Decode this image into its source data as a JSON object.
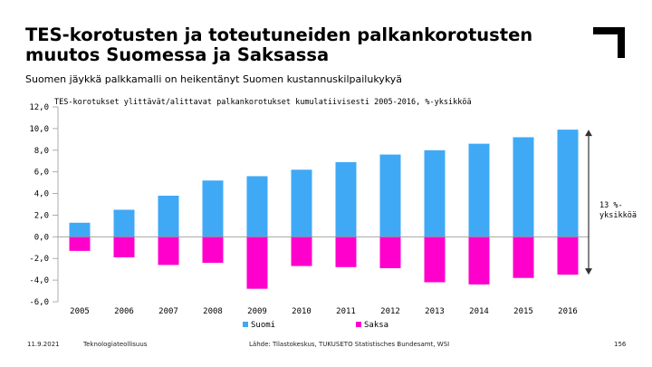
{
  "header": {
    "title": "TES-korotusten ja toteutuneiden palkankorotusten muutos Suomessa ja Saksassa",
    "subtitle": "Suomen jäykkä palkkamalli on heikentänyt Suomen kustannuskilpailukykyä"
  },
  "chart_data": {
    "type": "bar",
    "title": "TES-korotukset ylittävät/alittavat palkankorotukset kumulatiivisesti 2005-2016, %-yksikköä",
    "categories": [
      "2005",
      "2006",
      "2007",
      "2008",
      "2009",
      "2010",
      "2011",
      "2012",
      "2013",
      "2014",
      "2015",
      "2016"
    ],
    "series": [
      {
        "name": "Suomi",
        "color": "#3fa9f5",
        "values": [
          1.3,
          2.5,
          3.8,
          5.2,
          5.6,
          6.2,
          6.9,
          7.6,
          8.0,
          8.6,
          9.2,
          9.9
        ]
      },
      {
        "name": "Saksa",
        "color": "#ff00cc",
        "values": [
          -1.3,
          -1.9,
          -2.6,
          -2.4,
          -4.8,
          -2.7,
          -2.8,
          -2.9,
          -4.2,
          -4.4,
          -3.8,
          -3.5
        ]
      }
    ],
    "yticks": [
      "12,0",
      "10,0",
      "8,0",
      "6,0",
      "4,0",
      "2,0",
      "0,0",
      "-2,0",
      "-4,0",
      "-6,0"
    ],
    "ylim": [
      -6,
      12
    ],
    "annotation": {
      "text_lines": [
        "13 %-",
        "yksikköä"
      ],
      "from": -3.5,
      "to": 9.9
    }
  },
  "footer": {
    "date": "11.9.2021",
    "org": "Teknologiateollisuus",
    "source": "Lähde: Tilastokeskus, TUKUSETO Statistisches Bundesamt, WSI",
    "page": "156"
  },
  "colors": {
    "logo": "#000000",
    "axis": "#999999",
    "annotation": "#333333"
  }
}
